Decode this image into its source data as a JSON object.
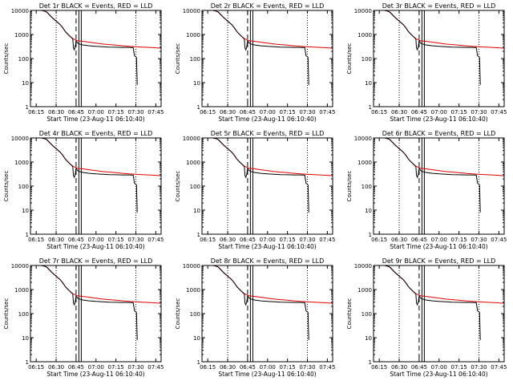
{
  "figure": {
    "xlabel": "Start Time (23-Aug-11 06:10:40)",
    "ylabel": "Counts/sec",
    "x_tick_labels": [
      "06:15",
      "06:30",
      "06:45",
      "07:00",
      "07:15",
      "07:30",
      "07:45"
    ],
    "y_tick_labels": [
      "1",
      "10",
      "100",
      "1000",
      "10000"
    ],
    "colors": {
      "events": "#000000",
      "lld": "#e00000",
      "axes": "#000000"
    }
  },
  "chart_data": [
    {
      "type": "line",
      "title": "Det 1r BLACK = Events, RED = LLD"
    },
    {
      "type": "line",
      "title": "Det 2r BLACK = Events, RED = LLD"
    },
    {
      "type": "line",
      "title": "Det 3r BLACK = Events, RED = LLD"
    },
    {
      "type": "line",
      "title": "Det 4r BLACK = Events, RED = LLD"
    },
    {
      "type": "line",
      "title": "Det 5r BLACK = Events, RED = LLD"
    },
    {
      "type": "line",
      "title": "Det 6r BLACK = Events, RED = LLD"
    },
    {
      "type": "line",
      "title": "Det 7r BLACK = Events, RED = LLD"
    },
    {
      "type": "line",
      "title": "Det 8r BLACK = Events, RED = LLD"
    },
    {
      "type": "line",
      "title": "Det 9r BLACK = Events, RED = LLD"
    }
  ],
  "shared_axes": {
    "x_scale": "time (minutes of day)",
    "xlim": [
      "06:10:40",
      "07:49:00"
    ],
    "y_scale": "log",
    "ylim": [
      1,
      10000
    ],
    "grid": false,
    "vertical_markers": [
      {
        "time": "06:30",
        "style": "dotted"
      },
      {
        "time": "06:45",
        "style": "dashed"
      },
      {
        "time": "06:48",
        "style": "solid-double"
      },
      {
        "time": "07:30",
        "style": "dotted"
      }
    ]
  },
  "series_data": {
    "lld": {
      "x": [
        "06:10:40",
        "06:13:00",
        "06:16:00",
        "06:19:00",
        "06:21:00",
        "06:23:00",
        "06:25:00",
        "06:27:00",
        "06:29:00",
        "06:31:00",
        "06:33:00",
        "06:35:00",
        "06:37:00",
        "06:39:00",
        "06:41:00",
        "06:43:00",
        "06:45:00",
        "06:46:00",
        "06:47:00",
        "06:50:00",
        "06:55:00",
        "07:00:00",
        "07:05:00",
        "07:10:00",
        "07:15:00",
        "07:20:00",
        "07:25:00",
        "07:30:00",
        "07:35:00",
        "07:40:00",
        "07:45:00",
        "07:49:00"
      ],
      "y": [
        10000,
        10000,
        10000,
        10000,
        9500,
        8500,
        6500,
        5000,
        4000,
        3200,
        2600,
        1900,
        1300,
        1000,
        780,
        650,
        590,
        550,
        540,
        520,
        480,
        440,
        400,
        380,
        360,
        340,
        320,
        310,
        300,
        290,
        280,
        270
      ]
    },
    "events": {
      "x": [
        "06:10:40",
        "06:13:00",
        "06:16:00",
        "06:19:00",
        "06:21:00",
        "06:23:00",
        "06:25:00",
        "06:27:00",
        "06:29:00",
        "06:31:00",
        "06:33:00",
        "06:35:00",
        "06:37:00",
        "06:39:00",
        "06:41:00",
        "06:42:30",
        "06:43:00",
        "06:43:40",
        "06:44:20",
        "06:45:00",
        "06:46:00",
        "06:47:00",
        "06:50:00",
        "06:55:00",
        "07:00:00",
        "07:05:00",
        "07:10:00",
        "07:15:00",
        "07:20:00",
        "07:25:00",
        "07:28:00",
        "07:29:00",
        "07:30:00",
        "07:30:30",
        "07:31:00"
      ],
      "y": [
        10000,
        10000,
        10000,
        10000,
        9500,
        8500,
        6500,
        5000,
        4000,
        3200,
        2600,
        1900,
        1300,
        1000,
        780,
        650,
        280,
        230,
        300,
        550,
        450,
        410,
        370,
        340,
        320,
        310,
        300,
        295,
        290,
        290,
        285,
        130,
        120,
        110,
        8
      ]
    }
  }
}
